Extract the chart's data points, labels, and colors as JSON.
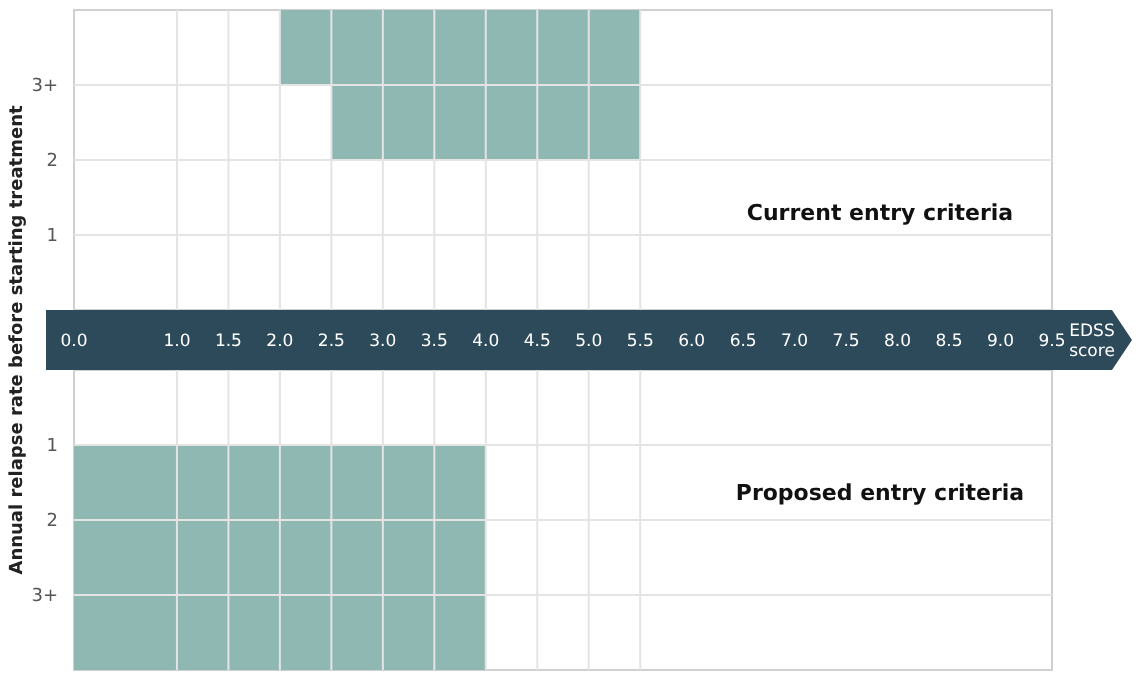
{
  "chart_data": [
    {
      "type": "bar",
      "orientation": "horizontal",
      "ylabel": "Annual relapse rate before starting treatment",
      "xlabel": "EDSS score",
      "annotations": [
        "Current entry criteria"
      ],
      "categories": [
        "3+",
        "2",
        "1",
        null
      ],
      "base": [
        2.0,
        2.5,
        null,
        null
      ],
      "values": [
        3.5,
        3.0,
        null,
        null
      ],
      "color": "#8fb8b2",
      "xlim": [
        0,
        9.5
      ],
      "xticks": [
        {
          "value": 0,
          "label": "0.0"
        },
        {
          "value": 1,
          "label": "1.0"
        },
        {
          "value": 1.5,
          "label": "1.5"
        },
        {
          "value": 2,
          "label": "2.0"
        },
        {
          "value": 2.5,
          "label": "2.5"
        },
        {
          "value": 3,
          "label": "3.0"
        },
        {
          "value": 3.5,
          "label": "3.5"
        },
        {
          "value": 4,
          "label": "4.0"
        },
        {
          "value": 4.5,
          "label": "4.5"
        },
        {
          "value": 5,
          "label": "5.0"
        },
        {
          "value": 5.5,
          "label": "5.5"
        },
        {
          "value": 6,
          "label": "6.0"
        },
        {
          "value": 6.5,
          "label": "6.5"
        },
        {
          "value": 7,
          "label": "7.0"
        },
        {
          "value": 7.5,
          "label": "7.5"
        },
        {
          "value": 8,
          "label": "8.0"
        },
        {
          "value": 8.5,
          "label": "8.5"
        },
        {
          "value": 9,
          "label": "9.0"
        },
        {
          "value": 9.5,
          "label": "9.5"
        }
      ],
      "grid": true
    },
    {
      "type": "bar",
      "orientation": "horizontal",
      "annotations": [
        "Proposed entry criteria"
      ],
      "categories": [
        null,
        "1",
        "2",
        "3+"
      ],
      "base": [
        null,
        0,
        0,
        0
      ],
      "values": [
        null,
        4.0,
        4.0,
        4.0
      ],
      "color": "#8fb8b2",
      "xlim": [
        0,
        9.5
      ],
      "grid": true,
      "tick_labels": "y"
    }
  ]
}
